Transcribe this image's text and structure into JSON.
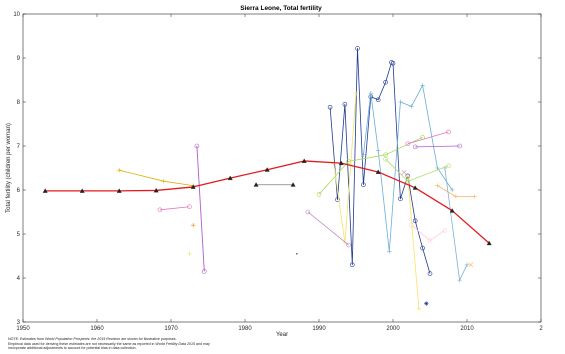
{
  "chart_data": {
    "type": "line",
    "title": "Sierra Leone, Total fertility",
    "xlabel": "Year",
    "ylabel": "Total fertility (children per woman)",
    "xlim": [
      1950,
      2020
    ],
    "ylim": [
      3,
      10
    ],
    "x_ticks": [
      "1950",
      "1960",
      "1970",
      "1980",
      "1990",
      "2000",
      "2010",
      "2"
    ],
    "y_ticks": [
      "3",
      "4",
      "5",
      "6",
      "7",
      "8",
      "9",
      "10"
    ],
    "grid": false,
    "legend": "none",
    "series": [
      {
        "color": "#e41a1c",
        "marker": "triangle",
        "width": 1.3,
        "x": [
          1953,
          1958,
          1963,
          1968,
          1973,
          1978,
          1983,
          1988,
          1993,
          1998,
          2003,
          2008,
          2013
        ],
        "y": [
          5.98,
          5.98,
          5.98,
          5.99,
          6.07,
          6.27,
          6.46,
          6.66,
          6.61,
          6.41,
          6.05,
          5.53,
          4.79
        ]
      },
      {
        "color": "#1f3a93",
        "marker": "circle",
        "width": 0.8,
        "x": [
          1991.5,
          1992.5,
          1993.5,
          1994.5,
          1995.2,
          1996.0,
          1997.0,
          1998.0,
          1999.0,
          1999.8
        ],
        "y": [
          7.88,
          5.78,
          7.95,
          4.3,
          9.22,
          6.12,
          8.12,
          8.05,
          8.45,
          8.9
        ]
      },
      {
        "color": "#1f3a93",
        "marker": "circle",
        "width": 0.8,
        "x": [
          2000.0,
          2001.0,
          2002.0,
          2003.0,
          2004.0,
          2005.0
        ],
        "y": [
          8.88,
          5.8,
          6.32,
          5.3,
          4.68,
          4.1
        ]
      },
      {
        "color": "#6baed6",
        "marker": "plus",
        "width": 0.8,
        "x": [
          1996.0,
          1997.0,
          1998.0,
          1999.5,
          2001.0,
          2002.5,
          2004.0,
          2006.0,
          2008.0
        ],
        "y": [
          6.8,
          8.2,
          6.9,
          4.6,
          8.0,
          7.9,
          8.38,
          6.5,
          6.0
        ]
      },
      {
        "color": "#a6d854",
        "marker": "circle",
        "width": 0.8,
        "x": [
          1990.0,
          1994.0,
          1999.0,
          2004.0
        ],
        "y": [
          5.9,
          6.65,
          6.8,
          7.2
        ]
      },
      {
        "color": "#f2e36b",
        "marker": "plus",
        "width": 0.8,
        "x": [
          1992.0,
          1993.5,
          1995.0
        ],
        "y": [
          6.6,
          4.8,
          8.2
        ]
      },
      {
        "color": "#b15dc9",
        "marker": "circle",
        "width": 0.9,
        "x": [
          1973.5,
          1974.5
        ],
        "y": [
          7.0,
          4.15
        ]
      },
      {
        "color": "#b15dc9",
        "marker": "circle",
        "width": 0.8,
        "x": [
          2003.0,
          2009.0
        ],
        "y": [
          6.98,
          7.0
        ]
      },
      {
        "color": "#e377c2",
        "marker": "circle",
        "width": 0.8,
        "x": [
          1968.5,
          1972.5
        ],
        "y": [
          5.55,
          5.62
        ]
      },
      {
        "color": "#e377c2",
        "marker": "circle",
        "width": 0.8,
        "x": [
          2002.0,
          2007.5
        ],
        "y": [
          7.05,
          7.32
        ]
      },
      {
        "color": "#d4b106",
        "marker": "plus",
        "width": 0.8,
        "x": [
          1963.0,
          1969.0,
          1973.0
        ],
        "y": [
          6.45,
          6.2,
          6.1
        ]
      },
      {
        "color": "#7f7f7f",
        "marker": "triangle",
        "width": 0.8,
        "x": [
          1981.5,
          1986.5
        ],
        "y": [
          6.12,
          6.12
        ]
      },
      {
        "color": "#bc80bd",
        "marker": "circle",
        "width": 0.8,
        "x": [
          1988.5,
          1994.0
        ],
        "y": [
          5.5,
          4.75
        ]
      },
      {
        "color": "#fdb462",
        "marker": "plus",
        "width": 0.8,
        "x": [
          2006.0,
          2008.5,
          2011.0
        ],
        "y": [
          6.1,
          5.85,
          5.85
        ]
      },
      {
        "color": "#fccde5",
        "marker": "circle",
        "width": 0.8,
        "x": [
          2002.5,
          2005.0,
          2007.0
        ],
        "y": [
          5.2,
          4.85,
          5.08
        ]
      },
      {
        "color": "#80b1d3",
        "marker": "plus",
        "width": 0.8,
        "x": [
          2007.0,
          2009.0,
          2010.0
        ],
        "y": [
          6.5,
          3.95,
          4.3
        ]
      },
      {
        "color": "#b3de69",
        "marker": "circle",
        "width": 0.8,
        "x": [
          1999.0,
          2002.0,
          2007.5
        ],
        "y": [
          6.7,
          6.2,
          6.55
        ]
      },
      {
        "color": "#ffe066",
        "marker": "plus",
        "width": 0.8,
        "x": [
          2002.0,
          2003.5
        ],
        "y": [
          6.3,
          3.3
        ]
      }
    ],
    "points": [
      {
        "x": 1973.0,
        "y": 5.2,
        "color": "#ff7f0e",
        "marker": "plus"
      },
      {
        "x": 1972.5,
        "y": 4.55,
        "color": "#f2e36b",
        "marker": "plus"
      },
      {
        "x": 1987.0,
        "y": 4.55,
        "color": "#555555",
        "marker": "dot"
      },
      {
        "x": 2004.5,
        "y": 3.42,
        "color": "#1f3a93",
        "marker": "star"
      },
      {
        "x": 2010.5,
        "y": 4.3,
        "color": "#fdb462",
        "marker": "cross"
      },
      {
        "x": 2001.5,
        "y": 6.4,
        "color": "#e377c2",
        "marker": "cross"
      }
    ]
  },
  "notes": {
    "line1_prefix": "NOTE: Estimates from ",
    "line1_italic": "World Population Prospects: the 2015 Revision",
    "line1_suffix": " are shown for illustrative purposes.",
    "line2_prefix": "Empirical data used for deriving these estimates are not necessarily the same as reported in ",
    "line2_italic": "World Fertility Data 2015",
    "line2_suffix": " and may",
    "line3": "incorporate additional adjustments to account for potential bias in data collection."
  }
}
